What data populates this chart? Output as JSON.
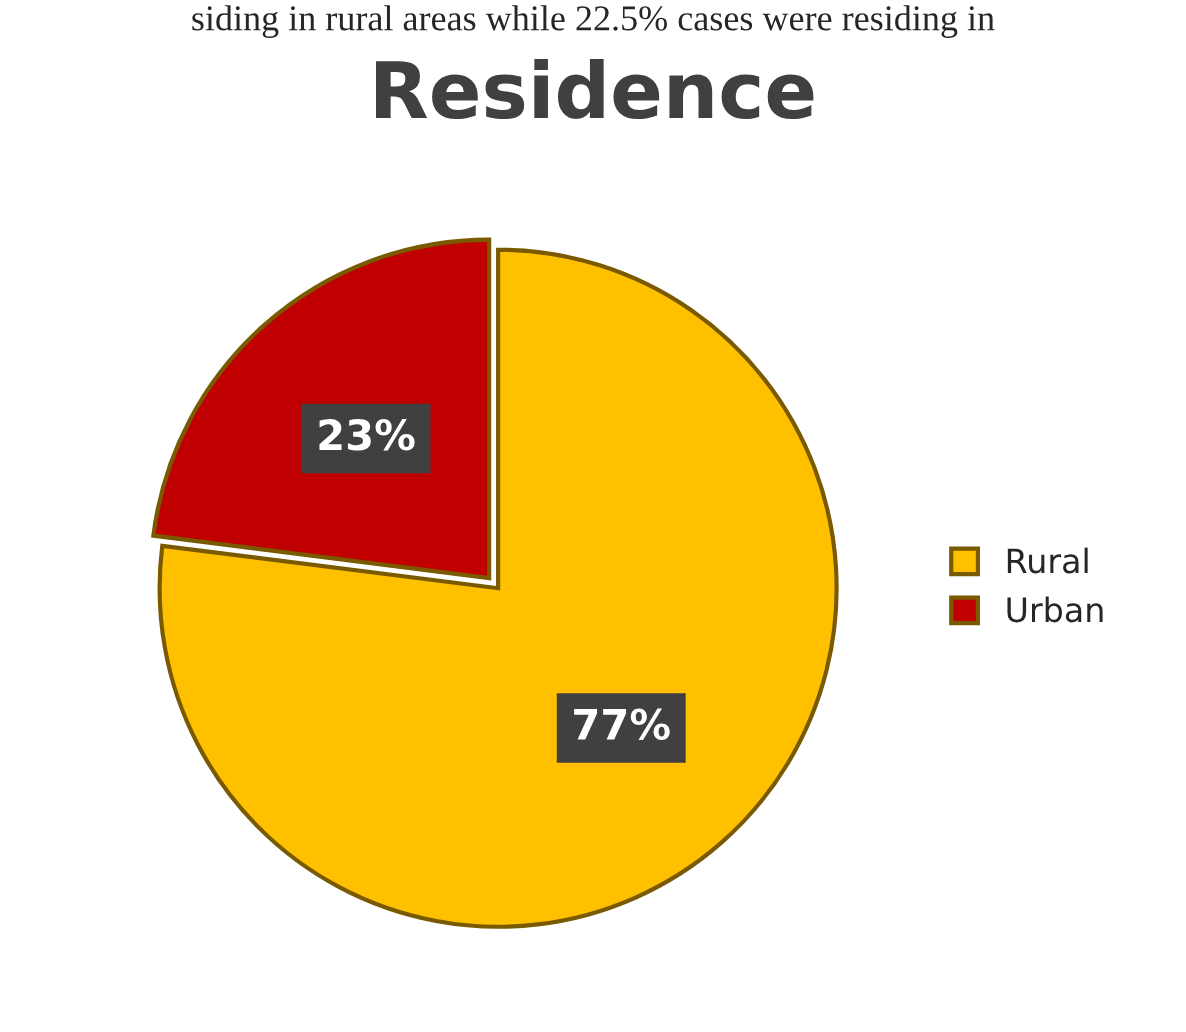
{
  "chart_data": {
    "type": "pie",
    "title": "Residence",
    "annotations": [
      "siding in rural areas while 22.5% cases were residing in"
    ],
    "categories": [
      "Rural",
      "Urban"
    ],
    "values": [
      77,
      23
    ],
    "colors": [
      "#ffc000",
      "#c00000"
    ],
    "value_labels": [
      "77%",
      "23%"
    ],
    "legend": "right"
  }
}
